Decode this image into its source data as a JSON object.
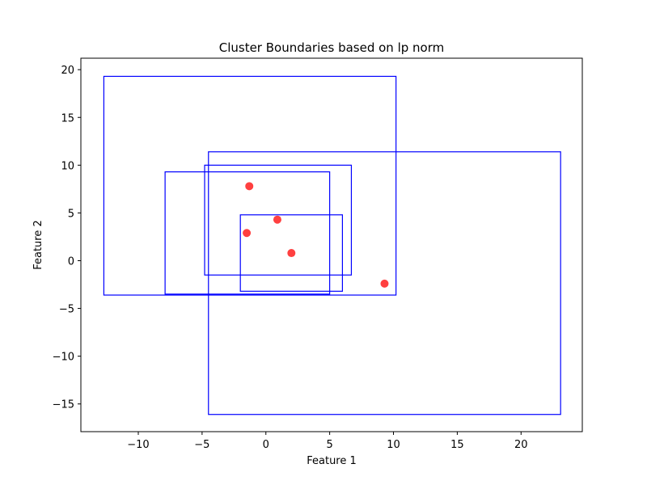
{
  "chart_data": {
    "type": "scatter",
    "title": "Cluster Boundaries based on lp norm",
    "xlabel": "Feature 1",
    "ylabel": "Feature 2",
    "xlim": [
      -14.5,
      24.8
    ],
    "ylim": [
      -17.9,
      21.2
    ],
    "xticks": [
      -10,
      -5,
      0,
      5,
      10,
      15,
      20
    ],
    "yticks": [
      -15,
      -10,
      -5,
      0,
      5,
      10,
      15,
      20
    ],
    "grid": false,
    "point_color": "#ff0000",
    "box_color": "#0000ff",
    "points": [
      {
        "x": -1.3,
        "y": 7.8
      },
      {
        "x": 0.9,
        "y": 4.3
      },
      {
        "x": -1.5,
        "y": 2.9
      },
      {
        "x": 2.0,
        "y": 0.8
      },
      {
        "x": 9.3,
        "y": -2.4
      }
    ],
    "boxes": [
      {
        "x0": -12.7,
        "x1": 10.2,
        "y0": -3.6,
        "y1": 19.3
      },
      {
        "x0": -4.5,
        "x1": 23.1,
        "y0": -16.1,
        "y1": 11.4
      },
      {
        "x0": -4.8,
        "x1": 6.7,
        "y0": -1.5,
        "y1": 10.0
      },
      {
        "x0": -7.9,
        "x1": 5.0,
        "y0": -3.5,
        "y1": 9.3
      },
      {
        "x0": -2.0,
        "x1": 6.0,
        "y0": -3.2,
        "y1": 4.8
      }
    ]
  }
}
